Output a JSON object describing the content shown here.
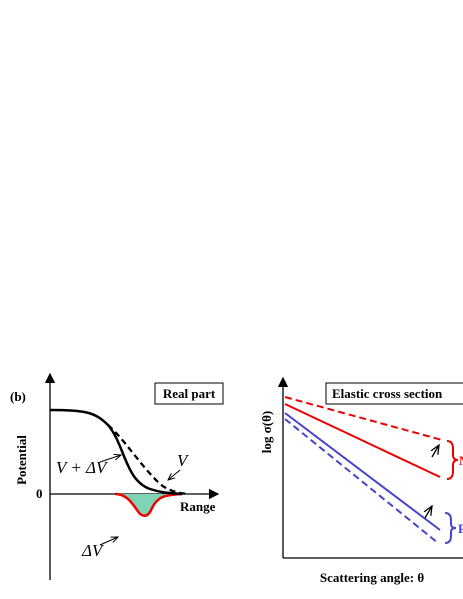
{
  "left_panel": {
    "panel_label": "(b)",
    "title": "Real part",
    "y_axis_label": "Potential",
    "zero_label": "0",
    "x_axis_label": "Range",
    "curve_labels": [
      "V + ΔV",
      "V",
      "ΔV"
    ]
  },
  "right_panel": {
    "title": "Elastic cross section",
    "y_axis_label": "log σ(θ)",
    "x_axis_label": "Scattering angle: θ",
    "group_labels": [
      "N",
      "P"
    ]
  }
}
